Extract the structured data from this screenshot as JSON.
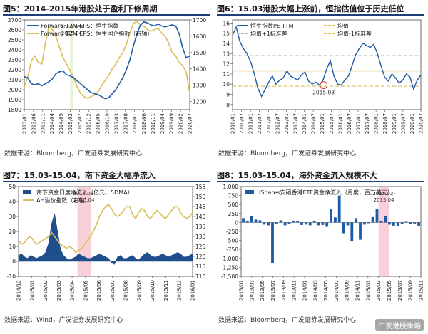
{
  "panels": [
    {
      "title": "图5：2014-2015年港股处于盈利下修周期",
      "source": "数据来源：Bloomberg，广发证券发展研究中心"
    },
    {
      "title": "图6：15.03港股大幅上涨前，恒指估值位于历史低位",
      "source": "数据来源：Bloomberg，广发证券发展研究中心"
    },
    {
      "title": "图7：15.03-15.04，南下资金大幅净流入",
      "source": "数据来源：Wind，广发证券发展研究中心"
    },
    {
      "title": "图8：15.03-15.04，海外资金流入规模不大",
      "source": "数据来源：Bloomberg，广发证券发展研究中心"
    }
  ],
  "watermark": "广发港股策略",
  "chart_data": [
    {
      "type": "line",
      "title": "图5：2014-2015年港股处于盈利下修周期",
      "x_ticks": [
        "2013/01",
        "2013/06",
        "2013/11",
        "2014/04",
        "2014/09",
        "2015/02",
        "2015/07",
        "2015/12",
        "2016/05",
        "2016/10",
        "2017/03",
        "2017/08",
        "2018/01",
        "2018/06",
        "2018/11",
        "2019/04",
        "2019/09",
        "2020/02",
        "2020/07"
      ],
      "y_left_ticks": [
        1800,
        1900,
        2000,
        2100,
        2200,
        2300,
        2400,
        2500,
        2600,
        2700
      ],
      "y_left_range": [
        1800,
        2700
      ],
      "y_right_ticks": [
        1200,
        1300,
        1400,
        1500,
        1600,
        1700
      ],
      "y_right_range": [
        1150,
        1700
      ],
      "highlight": {
        "label": "2015.03-2015.04",
        "label_lines": [
          "2015.03-",
          "2015.04"
        ],
        "x_index": [
          5.0,
          5.3
        ]
      },
      "series": [
        {
          "name": "Forward 12M EPS：恒生指数",
          "axis": "left",
          "color": "#1f5aa6",
          "values": [
            2130,
            2120,
            2060,
            2050,
            2060,
            2040,
            2060,
            2080,
            2110,
            2160,
            2180,
            2190,
            2150,
            2140,
            2120,
            2090,
            2060,
            2030,
            2000,
            1970,
            1960,
            1950,
            1930,
            1910,
            1920,
            1960,
            2000,
            2060,
            2120,
            2200,
            2300,
            2440,
            2560,
            2650,
            2680,
            2670,
            2650,
            2640,
            2660,
            2640,
            2630,
            2640,
            2650,
            2640,
            2560,
            2420,
            2320,
            2340
          ]
        },
        {
          "name": "Forward 12M EPS：恒生国企指数（右轴）",
          "axis": "right",
          "color": "#d9bf5a",
          "values": [
            1290,
            1350,
            1450,
            1480,
            1440,
            1430,
            1560,
            1660,
            1640,
            1600,
            1530,
            1470,
            1430,
            1390,
            1350,
            1290,
            1250,
            1230,
            1220,
            1230,
            1240,
            1260,
            1300,
            1330,
            1360,
            1400,
            1430,
            1470,
            1500,
            1550,
            1620,
            1680,
            1690,
            1670,
            1660,
            1640,
            1630,
            1640,
            1650,
            1620,
            1600,
            1560,
            1500,
            1480,
            1440,
            1420,
            1380,
            1250
          ]
        }
      ]
    },
    {
      "type": "line",
      "title": "图6：15.03港股大幅上涨前，恒指估值位于历史低位",
      "x_ticks": [
        "2010/01",
        "2010/07",
        "2011/01",
        "2011/07",
        "2012/01",
        "2012/07",
        "2013/01",
        "2013/07",
        "2014/01",
        "2014/07",
        "2015/01",
        "2015/07",
        "2016/01",
        "2016/07",
        "2017/01",
        "2017/07",
        "2018/01",
        "2018/07",
        "2019/01",
        "2019/07",
        "2020/01",
        "2020/07"
      ],
      "y_ticks": [
        8,
        9,
        10,
        11,
        12,
        13,
        14,
        15,
        16
      ],
      "y_range": [
        7.5,
        16.3
      ],
      "annotation": "2015.03",
      "series": [
        {
          "name": "恒生指数PE-TTM",
          "color": "#1f5aa6",
          "values": [
            14.8,
            15.6,
            14.2,
            13.5,
            13.0,
            12.2,
            11.0,
            9.6,
            8.8,
            9.5,
            10.2,
            10.8,
            10.0,
            10.4,
            10.6,
            11.3,
            10.8,
            10.6,
            10.4,
            10.9,
            11.2,
            10.3,
            10.0,
            10.2,
            9.9,
            10.4,
            11.5,
            12.3,
            10.8,
            10.0,
            9.9,
            10.4,
            10.8,
            11.8,
            12.9,
            13.5,
            14.0,
            13.8,
            13.6,
            13.9,
            13.0,
            11.8,
            10.7,
            10.3,
            11.0,
            10.6,
            10.1,
            10.4,
            11.0,
            10.7,
            9.5,
            10.4,
            10.9
          ]
        },
        {
          "name": "均值",
          "color": "#d9bf5a",
          "values": [
            11.3
          ]
        },
        {
          "name": "均值+1标准差",
          "color": "#b7b7b7",
          "values": [
            12.8
          ]
        },
        {
          "name": "均值-1标准差",
          "color": "#d9bf5a",
          "values": [
            9.8
          ]
        }
      ]
    },
    {
      "type": "area",
      "title": "图7：15.03-15.04，南下资金大幅净流入",
      "x_ticks": [
        "2014/12",
        "2015/01",
        "2015/02",
        "2015/03",
        "2015/04",
        "2015/05",
        "2015/06",
        "2015/07",
        "2015/08",
        "2015/09",
        "2015/10",
        "2015/11",
        "2015/12",
        "2016/01"
      ],
      "y_left_ticks": [
        -10,
        0,
        10,
        20,
        30,
        40,
        50
      ],
      "y_left_range": [
        -10,
        50
      ],
      "y_right_ticks": [
        110,
        115,
        120,
        125,
        130,
        135,
        140,
        145,
        150,
        155
      ],
      "y_right_range": [
        110,
        155
      ],
      "highlight": {
        "label": "2015.03-2015.04",
        "label_lines": [
          "2015.03-",
          "2015.04"
        ],
        "x_index": [
          4.4,
          5.4
        ]
      },
      "series": [
        {
          "name": "南下资金日度净流入（亿元，5DMA）",
          "axis": "left",
          "color": "#1f4e8c",
          "values": [
            4,
            5,
            3,
            2,
            4,
            3,
            2,
            3,
            4,
            6,
            12,
            25,
            32,
            20,
            8,
            4,
            2,
            1,
            2,
            3,
            5,
            4,
            3,
            2,
            2,
            3,
            4,
            5,
            4,
            3,
            2,
            -1,
            -2,
            3,
            4,
            2,
            2,
            3,
            4,
            2,
            1,
            3,
            5,
            6,
            4,
            3,
            3,
            4,
            5,
            4,
            3,
            4,
            5,
            6,
            5,
            3,
            3,
            4,
            5
          ]
        },
        {
          "name": "AH溢价指数（右轴）",
          "axis": "right",
          "color": "#d9bf5a",
          "values": [
            128,
            126,
            127,
            129,
            130,
            128,
            126,
            127,
            128,
            129,
            130,
            132,
            130,
            128,
            126,
            125,
            124,
            125,
            124,
            122,
            123,
            124,
            126,
            128,
            130,
            133,
            136,
            140,
            143,
            145,
            146,
            144,
            141,
            140,
            141,
            143,
            145,
            145,
            141,
            139,
            142,
            144,
            143,
            140,
            139,
            141,
            143,
            142,
            140,
            139,
            141,
            143,
            145,
            145,
            142,
            140,
            139,
            140,
            142
          ]
        }
      ]
    },
    {
      "type": "bar",
      "title": "图8：15.03-15.04，海外资金流入规模不大",
      "x_ticks": [
        "2013/01",
        "2013/03",
        "2013/05",
        "2013/07",
        "2013/09",
        "2013/11",
        "2014/01",
        "2014/03",
        "2014/05",
        "2014/07",
        "2014/09",
        "2014/11",
        "2015/01",
        "2015/03",
        "2015/05",
        "2015/07",
        "2015/09",
        "2015/11"
      ],
      "y_ticks": [
        -1500,
        -1250,
        -1000,
        -750,
        -500,
        -250,
        0,
        250,
        500,
        750,
        1000
      ],
      "y_range": [
        -1500,
        1000
      ],
      "highlight": {
        "label": "2015.03-2015.04",
        "label_lines": [
          "2015.03-",
          "2015.04"
        ],
        "x_index": [
          13.0,
          14.0
        ]
      },
      "series": [
        {
          "name": "iShares安硕香港ETF资金净流入（月度，百万美元）",
          "color": "#1f5aa6",
          "values": [
            120,
            40,
            170,
            80,
            60,
            -60,
            -80,
            -1130,
            -40,
            60,
            -80,
            -40,
            50,
            40,
            -70,
            -60,
            -80,
            50,
            -80,
            -70,
            -120,
            380,
            140,
            750,
            -300,
            -80,
            -530,
            120,
            -480,
            -60,
            -20,
            150,
            370,
            50,
            170,
            -60,
            -90,
            -100,
            -40,
            20,
            -40,
            -30,
            -90
          ]
        }
      ]
    }
  ]
}
